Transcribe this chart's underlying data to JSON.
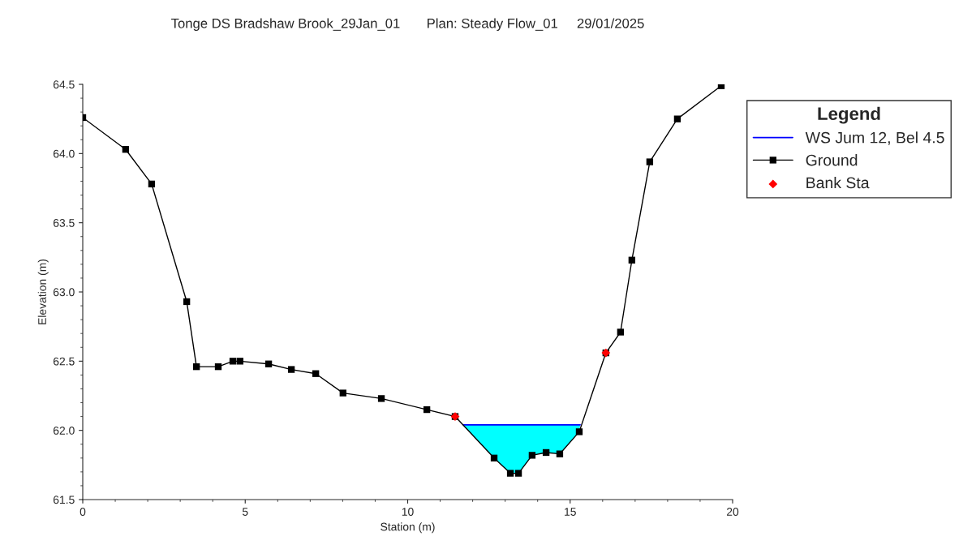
{
  "chart_data": {
    "type": "line",
    "title": "Tonge DS Bradshaw Brook_29Jan_01       Plan: Steady Flow_01     29/01/2025",
    "xlabel": "Station (m)",
    "ylabel": "Elevation (m)",
    "legend_title": "Legend",
    "xlim": [
      0,
      20
    ],
    "xticks": [
      0,
      5,
      10,
      15,
      20
    ],
    "ylim": [
      61.5,
      64.5
    ],
    "yticks": [
      {
        "value": 61.5,
        "label": "61.5"
      },
      {
        "value": 62.0,
        "label": "62.0"
      },
      {
        "value": 62.5,
        "label": "62.5"
      },
      {
        "value": 63.0,
        "label": "63.0"
      },
      {
        "value": 63.5,
        "label": "63.5"
      },
      {
        "value": 64.0,
        "label": "64.0"
      },
      {
        "value": 64.5,
        "label": "64.5"
      }
    ],
    "grid": false,
    "legend": "right",
    "series": [
      {
        "name": "WS Jum 12, Bel 4.5",
        "color": "#0000ff",
        "marker": "none",
        "x": [
          11.71,
          12.66,
          13.16,
          13.41,
          13.83,
          14.26,
          14.68,
          15.28,
          15.31
        ],
        "values": [
          62.04,
          62.04,
          62.04,
          62.04,
          62.04,
          62.04,
          62.04,
          62.04,
          62.04
        ],
        "lower": [
          62.04,
          61.8,
          61.69,
          61.69,
          61.82,
          61.84,
          61.83,
          61.99,
          62.04
        ],
        "upper": [
          62.04,
          62.04,
          62.04,
          62.04,
          62.04,
          62.04,
          62.04,
          62.04,
          62.04
        ]
      },
      {
        "name": "Ground",
        "type": "line",
        "color": "#000000",
        "marker": "square",
        "line_style": "solid",
        "x": [
          0,
          1.32,
          2.12,
          3.2,
          3.5,
          4.17,
          4.62,
          4.84,
          5.72,
          6.42,
          7.17,
          8.01,
          9.19,
          10.59,
          11.46,
          12.66,
          13.16,
          13.41,
          13.83,
          14.26,
          14.68,
          15.28,
          16.1,
          16.55,
          16.9,
          17.45,
          18.3,
          19.65
        ],
        "values": [
          64.26,
          64.03,
          63.78,
          62.93,
          62.46,
          62.46,
          62.5,
          62.5,
          62.48,
          62.44,
          62.41,
          62.27,
          62.23,
          62.15,
          62.1,
          61.8,
          61.69,
          61.69,
          61.82,
          61.84,
          61.83,
          61.99,
          62.56,
          62.71,
          63.23,
          63.94,
          64.25,
          64.49
        ]
      },
      {
        "name": "Bank Sta",
        "type": "scatter",
        "color": "#ff0000",
        "marker": "diamond",
        "x": [
          11.46,
          16.1
        ],
        "values": [
          62.1,
          62.56
        ]
      }
    ]
  }
}
